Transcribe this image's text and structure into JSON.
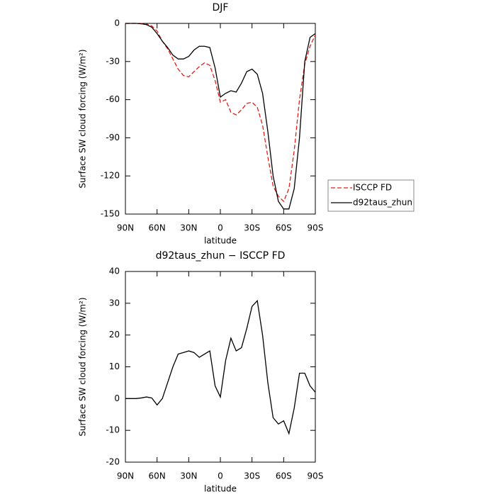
{
  "chart_data": [
    {
      "type": "line",
      "title": "DJF",
      "xlabel": "latitude",
      "ylabel": "Surface SW cloud forcing (W/m²)",
      "x": [
        90,
        85,
        80,
        75,
        70,
        65,
        60,
        55,
        50,
        45,
        40,
        35,
        30,
        25,
        20,
        15,
        10,
        5,
        0,
        -5,
        -10,
        -15,
        -20,
        -25,
        -30,
        -35,
        -40,
        -45,
        -50,
        -55,
        -60,
        -65,
        -70,
        -75,
        -80,
        -85,
        -90
      ],
      "xlim": [
        90,
        -90
      ],
      "xticks": [
        {
          "value": 90,
          "label": "90N"
        },
        {
          "value": 60,
          "label": "60N"
        },
        {
          "value": 30,
          "label": "30N"
        },
        0,
        {
          "value": -30,
          "label": "30S"
        },
        {
          "value": -60,
          "label": "60S"
        },
        {
          "value": -90,
          "label": "90S"
        }
      ],
      "ylim": [
        -150,
        0
      ],
      "yticks": [
        0,
        -30,
        -60,
        -90,
        -120,
        -150
      ],
      "legend": "outside right",
      "series": [
        {
          "name": "ISCCP FD",
          "color": "#e0201b",
          "dashed": true,
          "values": [
            0,
            0,
            0,
            0,
            -0.5,
            -2,
            -6,
            -14,
            -20,
            -28,
            -36,
            -41,
            -42,
            -38,
            -34,
            -31,
            -33,
            -45,
            -62,
            -60,
            -70,
            -72,
            -68,
            -63,
            -62,
            -66,
            -80,
            -105,
            -128,
            -136,
            -140,
            -130,
            -100,
            -60,
            -32,
            -18,
            -9
          ]
        },
        {
          "name": "d92taus_zhun",
          "color": "#000000",
          "dashed": false,
          "values": [
            0,
            0,
            0,
            -0.3,
            -1,
            -3,
            -8,
            -14,
            -19,
            -25,
            -28,
            -28,
            -26,
            -21,
            -18,
            -18,
            -19,
            -35,
            -58,
            -55,
            -53,
            -54,
            -47,
            -38,
            -36,
            -40,
            -55,
            -85,
            -120,
            -140,
            -146,
            -146,
            -130,
            -90,
            -30,
            -11,
            -8
          ]
        }
      ]
    },
    {
      "type": "line",
      "title": "d92taus_zhun − ISCCP FD",
      "xlabel": "latitude",
      "ylabel": "Surface SW cloud forcing (W/m²)",
      "x": [
        90,
        85,
        80,
        75,
        70,
        65,
        60,
        55,
        50,
        45,
        40,
        35,
        30,
        25,
        20,
        15,
        10,
        5,
        0,
        -5,
        -10,
        -15,
        -20,
        -25,
        -30,
        -35,
        -40,
        -45,
        -50,
        -55,
        -60,
        -65,
        -70,
        -75,
        -80,
        -85,
        -90
      ],
      "xlim": [
        90,
        -90
      ],
      "xticks": [
        {
          "value": 90,
          "label": "90N"
        },
        {
          "value": 60,
          "label": "60N"
        },
        {
          "value": 30,
          "label": "30N"
        },
        0,
        {
          "value": -30,
          "label": "30S"
        },
        {
          "value": -60,
          "label": "60S"
        },
        {
          "value": -90,
          "label": "90S"
        }
      ],
      "ylim": [
        -20,
        40
      ],
      "yticks": [
        40,
        30,
        20,
        10,
        0,
        -10,
        -20
      ],
      "series": [
        {
          "color": "#000000",
          "dashed": false,
          "values": [
            0,
            0,
            0,
            0.2,
            0.5,
            0.2,
            -2,
            0,
            5,
            10,
            14,
            14.5,
            15,
            14.5,
            13,
            14,
            15,
            4,
            0.5,
            12,
            19,
            15,
            16,
            22,
            29,
            30.8,
            20,
            5,
            -6,
            -8,
            -7,
            -11,
            -3,
            8,
            8,
            4,
            2
          ]
        }
      ]
    }
  ]
}
